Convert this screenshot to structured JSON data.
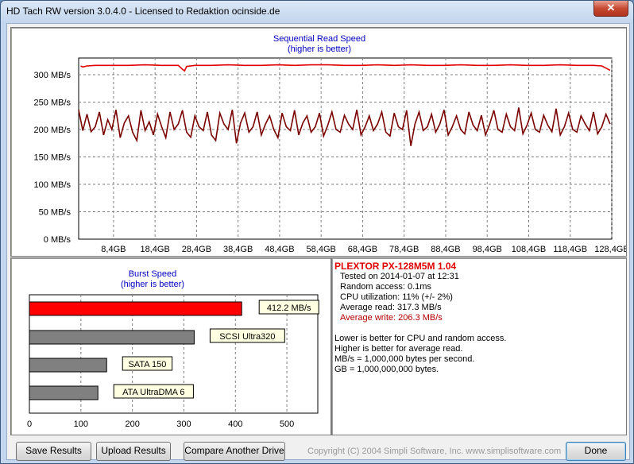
{
  "window": {
    "title": "HD Tach RW version 3.0.4.0 - Licensed to Redaktion ocinside.de",
    "close_glyph": "✕"
  },
  "sequential": {
    "title": "Sequential Read Speed",
    "subtitle": "(higher is better)",
    "y_ticks": [
      "300 MB/s",
      "250 MB/s",
      "200 MB/s",
      "150 MB/s",
      "100 MB/s",
      "50 MB/s",
      "0 MB/s"
    ],
    "x_ticks": [
      "8,4GB",
      "18,4GB",
      "28,4GB",
      "38,4GB",
      "48,4GB",
      "58,4GB",
      "68,4GB",
      "78,4GB",
      "88,4GB",
      "98,4GB",
      "108,4GB",
      "118,4GB",
      "128,4GB"
    ],
    "colors": {
      "read": "#e00000",
      "write": "#7a0000",
      "grid": "#808080"
    }
  },
  "burst": {
    "title": "Burst Speed",
    "subtitle": "(higher is better)",
    "x_ticks": [
      "0",
      "100",
      "200",
      "300",
      "400",
      "500"
    ],
    "bars": [
      {
        "label": "412.2 MB/s",
        "value": 412.2,
        "color": "#ff0000"
      },
      {
        "label": "SCSI Ultra320",
        "value": 320,
        "color": "#808080"
      },
      {
        "label": "SATA 150",
        "value": 150,
        "color": "#808080"
      },
      {
        "label": "ATA UltraDMA 6",
        "value": 133,
        "color": "#808080"
      }
    ]
  },
  "chart_data": [
    {
      "type": "line",
      "title": "Sequential Read Speed",
      "subtitle": "(higher is better)",
      "xlabel": "",
      "ylabel": "",
      "x_unit": "GB",
      "ylim": [
        0,
        320
      ],
      "xlim": [
        0,
        128.4
      ],
      "grid": true,
      "series": [
        {
          "color": "#e00000",
          "x": [
            0.5,
            1,
            2,
            4,
            8,
            12,
            16,
            20,
            24,
            25,
            25.5,
            26,
            28,
            32,
            36,
            40,
            44,
            48,
            52,
            56,
            60,
            64,
            68,
            72,
            76,
            80,
            84,
            88,
            92,
            96,
            100,
            104,
            108,
            112,
            116,
            120,
            124,
            126,
            127.5,
            128
          ],
          "values": [
            316,
            314,
            316,
            317,
            317,
            317,
            318,
            317,
            317,
            310,
            307,
            315,
            317,
            317,
            318,
            317,
            317,
            318,
            317,
            318,
            318,
            317,
            317,
            318,
            317,
            318,
            317,
            317,
            318,
            317,
            317,
            318,
            317,
            317,
            318,
            317,
            317,
            316,
            310,
            308
          ]
        },
        {
          "color": "#7a0000",
          "x": [
            0,
            1,
            2,
            3,
            4,
            5,
            6,
            7,
            8,
            9,
            10,
            11,
            12,
            13,
            14,
            15,
            16,
            17,
            18,
            19,
            20,
            21,
            22,
            23,
            24,
            25,
            26,
            27,
            28,
            29,
            30,
            31,
            32,
            33,
            34,
            35,
            36,
            37,
            38,
            39,
            40,
            41,
            42,
            43,
            44,
            45,
            46,
            47,
            48,
            49,
            50,
            51,
            52,
            53,
            54,
            55,
            56,
            57,
            58,
            59,
            60,
            61,
            62,
            63,
            64,
            65,
            66,
            67,
            68,
            69,
            70,
            71,
            72,
            73,
            74,
            75,
            76,
            77,
            78,
            79,
            80,
            81,
            82,
            83,
            84,
            85,
            86,
            87,
            88,
            89,
            90,
            91,
            92,
            93,
            94,
            95,
            96,
            97,
            98,
            99,
            100,
            101,
            102,
            103,
            104,
            105,
            106,
            107,
            108,
            109,
            110,
            111,
            112,
            113,
            114,
            115,
            116,
            117,
            118,
            119,
            120,
            121,
            122,
            123,
            124,
            125,
            126,
            127,
            128
          ],
          "values": [
            236,
            198,
            228,
            196,
            205,
            232,
            190,
            218,
            200,
            236,
            185,
            212,
            225,
            195,
            180,
            235,
            198,
            214,
            190,
            228,
            205,
            185,
            232,
            200,
            210,
            235,
            195,
            186,
            225,
            205,
            198,
            232,
            190,
            180,
            230,
            210,
            200,
            236,
            175,
            212,
            230,
            195,
            205,
            232,
            190,
            210,
            225,
            200,
            185,
            230,
            205,
            198,
            235,
            190,
            212,
            225,
            195,
            205,
            230,
            188,
            208,
            232,
            200,
            195,
            226,
            210,
            200,
            236,
            190,
            205,
            225,
            198,
            210,
            232,
            195,
            188,
            230,
            205,
            200,
            235,
            170,
            210,
            232,
            198,
            205,
            228,
            195,
            210,
            236,
            190,
            205,
            225,
            200,
            192,
            232,
            208,
            198,
            226,
            190,
            210,
            235,
            200,
            195,
            228,
            205,
            198,
            240,
            192,
            208,
            230,
            200,
            195,
            226,
            208,
            196,
            238,
            190,
            205,
            230,
            200,
            195,
            225,
            210,
            198,
            232,
            192,
            205,
            228,
            210
          ]
        }
      ]
    },
    {
      "type": "bar",
      "title": "Burst Speed",
      "subtitle": "(higher is better)",
      "categories": [
        "412.2 MB/s",
        "SCSI Ultra320",
        "SATA 150",
        "ATA UltraDMA 6"
      ],
      "values": [
        412.2,
        320,
        150,
        133
      ],
      "xlim": [
        0,
        560
      ]
    }
  ],
  "info": {
    "drive_name": "PLEXTOR PX-128M5M 1.04",
    "lines": [
      {
        "text": "Tested on 2014-01-07 at 12:31",
        "color": "#000000"
      },
      {
        "text": "Random access: 0.1ms",
        "color": "#000000"
      },
      {
        "text": "CPU utilization: 11% (+/- 2%)",
        "color": "#000000"
      },
      {
        "text": "Average read: 317.3 MB/s",
        "color": "#000000"
      },
      {
        "text": "Average write: 206.3 MB/s",
        "color": "#b00000"
      }
    ],
    "notes": [
      "Lower is better for CPU and random access.",
      "Higher is better for average read.",
      "MB/s = 1,000,000 bytes per second.",
      "GB = 1,000,000,000 bytes."
    ]
  },
  "buttons": {
    "save": "Save Results",
    "upload": "Upload Results",
    "compare": "Compare Another Drive",
    "done": "Done"
  },
  "copyright": "Copyright (C) 2004 Simpli Software, Inc. www.simplisoftware.com"
}
